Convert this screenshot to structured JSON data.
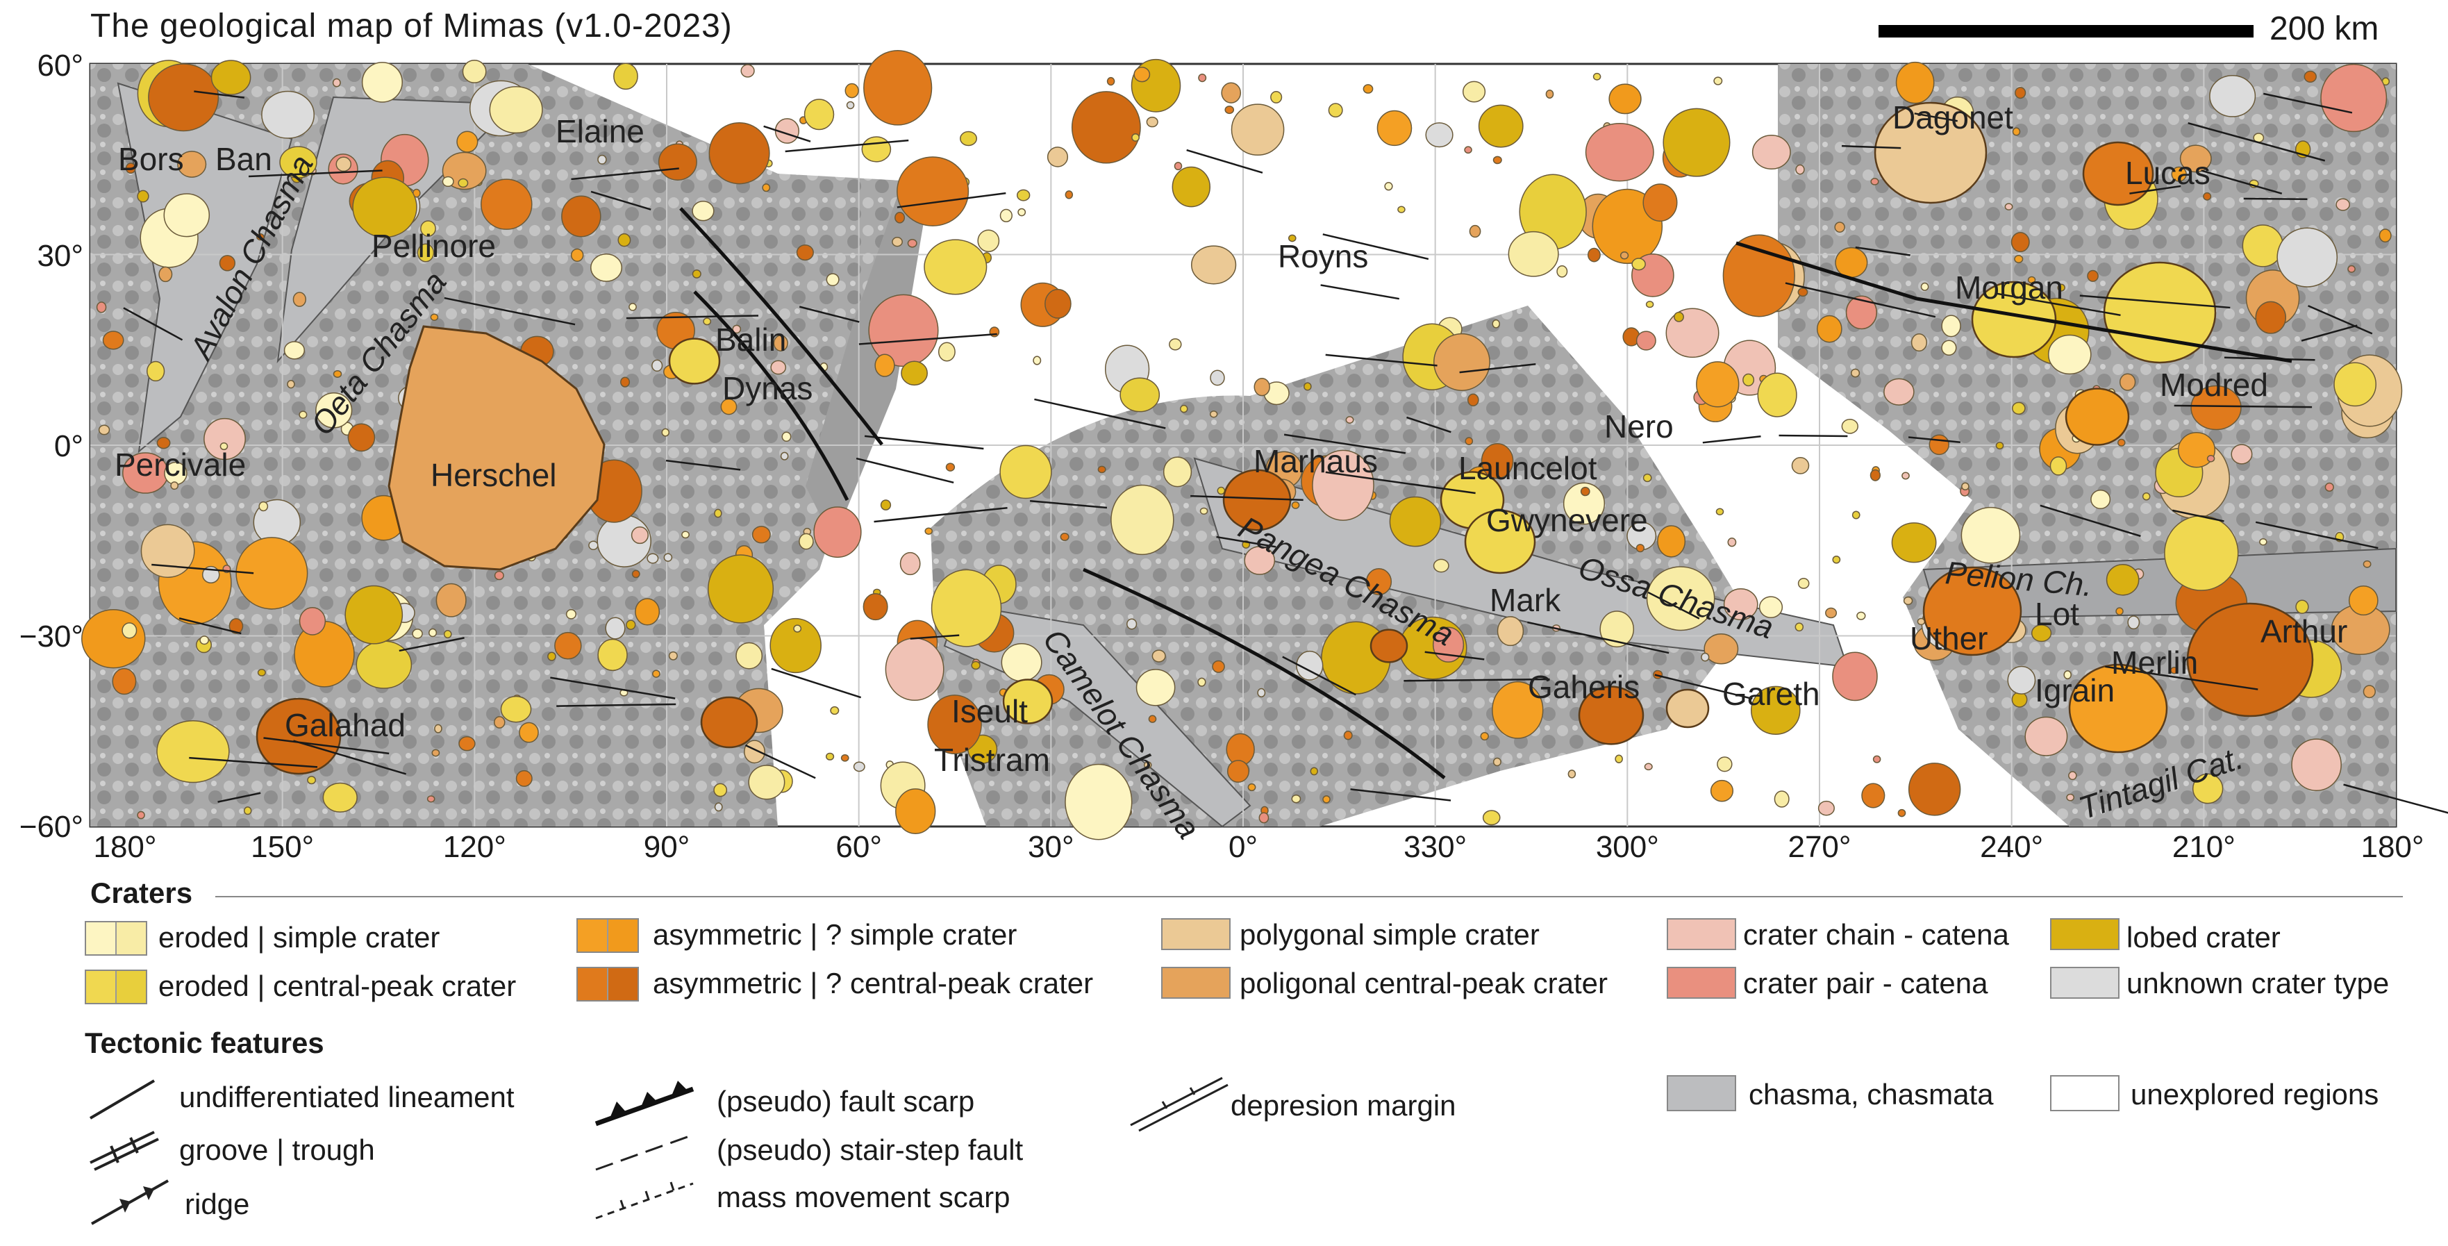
{
  "title": "The geological map of Mimas (v1.0-2023)",
  "scale_bar": {
    "label": "200 km"
  },
  "lat_labels": [
    "60°",
    "30°",
    "0°",
    "−30°",
    "−60°"
  ],
  "lon_labels": [
    "180°",
    "150°",
    "120°",
    "90°",
    "60°",
    "30°",
    "0°",
    "330°",
    "300°",
    "270°",
    "240°",
    "210°",
    "180°"
  ],
  "features": {
    "craters": [
      "Bors",
      "Ban",
      "Elaine",
      "Pellinore",
      "Balin",
      "Dynas",
      "Herschel",
      "Percivale",
      "Galahad",
      "Iseult",
      "Tristram",
      "Royns",
      "Marhaus",
      "Launcelot",
      "Nero",
      "Gwynevere",
      "Mark",
      "Gaheris",
      "Gareth",
      "Dagonet",
      "Lucas",
      "Morgan",
      "Modred",
      "Uther",
      "Lot",
      "Igrain",
      "Merlin",
      "Arthur"
    ],
    "chasmata": [
      "Avalon Chasma",
      "Oeta Chasma",
      "Pangea Chasma",
      "Ossa Chasma",
      "Camelot Chasma",
      "Pelion Ch.",
      "Tintagil Cat."
    ]
  },
  "legend": {
    "craters_title": "Craters",
    "tectonic_title": "Tectonic features",
    "crater_items": [
      {
        "label": "eroded | simple crater",
        "colors": [
          "#fdf5c2",
          "#f8eca6"
        ]
      },
      {
        "label": "eroded | central-peak crater",
        "colors": [
          "#f0d850",
          "#e8cf3c"
        ]
      },
      {
        "label": "asymmetric | ? simple crater",
        "colors": [
          "#f4a024",
          "#f19a1c"
        ]
      },
      {
        "label": "asymmetric | ? central-peak crater",
        "colors": [
          "#e07a1c",
          "#d06a14"
        ]
      },
      {
        "label": "polygonal simple crater",
        "colors": [
          "#ebc995"
        ]
      },
      {
        "label": "poligonal central-peak crater",
        "colors": [
          "#e5a35b"
        ]
      },
      {
        "label": "crater chain - catena",
        "colors": [
          "#f0c2b5"
        ]
      },
      {
        "label": "crater pair - catena",
        "colors": [
          "#e9907f"
        ]
      },
      {
        "label": "lobed crater",
        "colors": [
          "#d9b012"
        ]
      },
      {
        "label": "unknown crater type",
        "colors": [
          "#dcdcdc"
        ]
      }
    ],
    "tectonic_items": [
      {
        "label": "undifferentiated lineament",
        "symbol": "lineament-icon"
      },
      {
        "label": "groove | trough",
        "symbol": "groove-icon"
      },
      {
        "label": "ridge",
        "symbol": "ridge-icon"
      },
      {
        "label": "(pseudo) fault scarp",
        "symbol": "fault-scarp-icon"
      },
      {
        "label": "(pseudo) stair-step fault",
        "symbol": "stair-step-fault-icon"
      },
      {
        "label": "mass movement scarp",
        "symbol": "mass-movement-icon"
      },
      {
        "label": "depresion margin",
        "symbol": "depression-margin-icon"
      }
    ],
    "area_items": [
      {
        "label": "chasma, chasmata",
        "color": "#bcbdbf"
      },
      {
        "label": "unexplored regions",
        "color": "#ffffff"
      }
    ]
  }
}
